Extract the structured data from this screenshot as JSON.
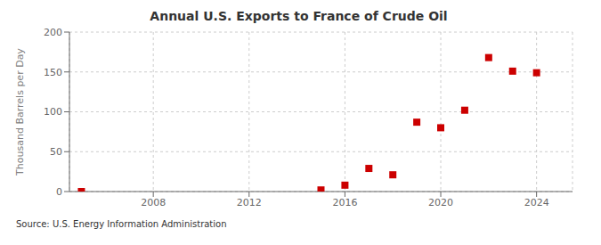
{
  "chart_data": {
    "type": "scatter",
    "title": "Annual U.S. Exports to France of Crude Oil",
    "ylabel": "Thousand Barrels per Day",
    "source": "Source: U.S. Energy Information Administration",
    "x": [
      2005,
      2015,
      2016,
      2017,
      2018,
      2019,
      2020,
      2021,
      2022,
      2023,
      2024
    ],
    "values": [
      0,
      2,
      8,
      29,
      21,
      87,
      80,
      102,
      168,
      151,
      149
    ],
    "color": "#cc0000",
    "marker": "square",
    "xlim": [
      2004.5,
      2025.5
    ],
    "xticks": [
      2008,
      2012,
      2016,
      2020,
      2024
    ],
    "ylim": [
      0,
      200
    ],
    "yticks": [
      0,
      50,
      100,
      150,
      200
    ],
    "grid": true
  }
}
